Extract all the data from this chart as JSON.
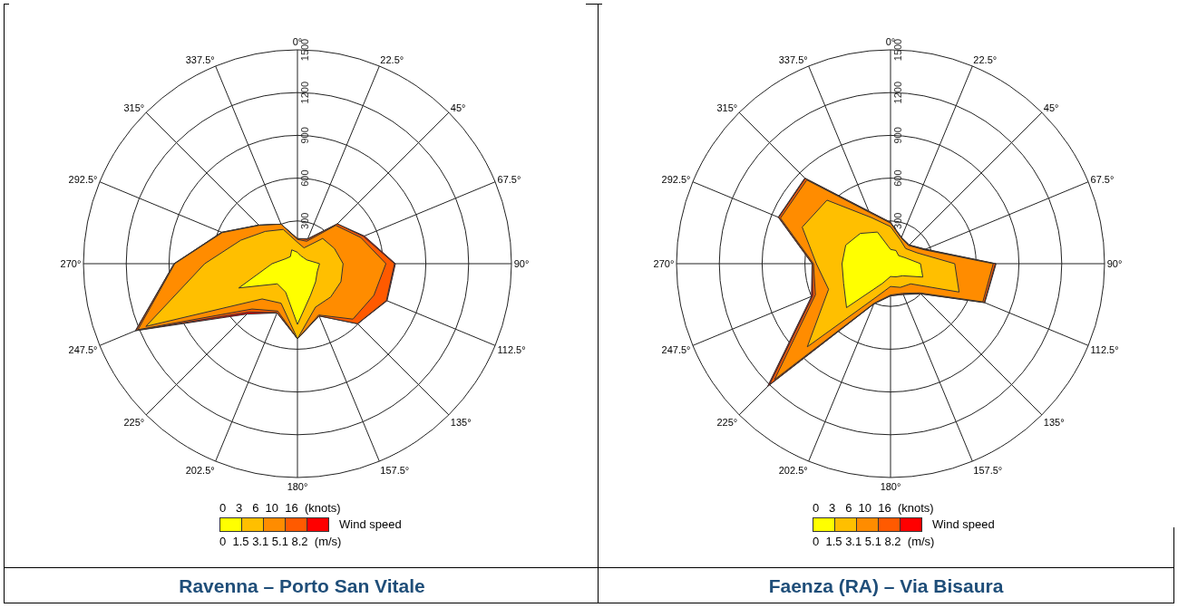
{
  "chart_data": [
    {
      "type": "radar",
      "title": "Ravenna – Porto San Vitale",
      "legend_title": "Wind speed",
      "annotations": [
        "0   3   6  10  16  (knots)",
        "0  1.5 3.1 5.1 8.2  (m/s)"
      ],
      "categories": [
        "0°",
        "22.5°",
        "45°",
        "67.5°",
        "90°",
        "112.5°",
        "135°",
        "157.5°",
        "180°",
        "202.5°",
        "225°",
        "247.5°",
        "270°",
        "292.5°",
        "315°",
        "337.5°"
      ],
      "ylim": [
        0,
        1500
      ],
      "yticks": [
        300,
        600,
        900,
        1200,
        1500
      ],
      "grid": true,
      "series": [
        {
          "color": "#ff0000",
          "values": [
            176,
            190,
            395,
            508,
            687,
            680,
            597,
            397,
            527,
            374,
            500,
            1230,
            865,
            575,
            383,
            300
          ]
        },
        {
          "color": "#ff5a00",
          "values": [
            176,
            185,
            395,
            500,
            680,
            675,
            595,
            397,
            527,
            372,
            480,
            1225,
            865,
            575,
            383,
            300
          ]
        },
        {
          "color": "#ff8c00",
          "values": [
            170,
            170,
            380,
            480,
            620,
            580,
            550,
            390,
            527,
            360,
            450,
            1210,
            860,
            570,
            380,
            300
          ]
        },
        {
          "color": "#ffbf00",
          "values": [
            150,
            120,
            250,
            280,
            320,
            330,
            330,
            330,
            527,
            300,
            350,
            1150,
            650,
            430,
            320,
            260
          ]
        },
        {
          "color": "#ffff00",
          "values": [
            80,
            60,
            60,
            70,
            155,
            150,
            180,
            240,
            426,
            216,
            200,
            445,
            178,
            90,
            70,
            105
          ]
        }
      ]
    },
    {
      "type": "radar",
      "title": "Faenza (RA) – Via Bisaura",
      "legend_title": "Wind speed",
      "annotations": [
        "0   3   6  10  16  (knots)",
        "0  1.5 3.1 5.1 8.2  (m/s)"
      ],
      "categories": [
        "0°",
        "22.5°",
        "45°",
        "67.5°",
        "90°",
        "112.5°",
        "135°",
        "157.5°",
        "180°",
        "202.5°",
        "225°",
        "247.5°",
        "270°",
        "292.5°",
        "315°",
        "337.5°"
      ],
      "ylim": [
        0,
        1500
      ],
      "yticks": [
        300,
        600,
        900,
        1200,
        1500
      ],
      "grid": true,
      "series": [
        {
          "color": "#ff0000",
          "values": [
            290,
            200,
            186,
            266,
            740,
            715,
            300,
            234,
            226,
            306,
            1220,
            600,
            550,
            852,
            850,
            400
          ]
        },
        {
          "color": "#ff5a00",
          "values": [
            290,
            200,
            185,
            262,
            735,
            712,
            298,
            232,
            225,
            305,
            1200,
            590,
            548,
            848,
            845,
            396
          ]
        },
        {
          "color": "#ff8c00",
          "values": [
            285,
            195,
            180,
            255,
            720,
            700,
            290,
            225,
            220,
            300,
            1150,
            570,
            540,
            835,
            830,
            390
          ]
        },
        {
          "color": "#ffbf00",
          "values": [
            260,
            180,
            150,
            200,
            450,
            520,
            200,
            180,
            160,
            250,
            825,
            470,
            520,
            670,
            630,
            350
          ]
        },
        {
          "color": "#ffff00",
          "values": [
            100,
            100,
            80,
            110,
            210,
            245,
            120,
            100,
            90,
            150,
            436,
            356,
            340,
            340,
            300,
            240
          ]
        }
      ]
    }
  ]
}
